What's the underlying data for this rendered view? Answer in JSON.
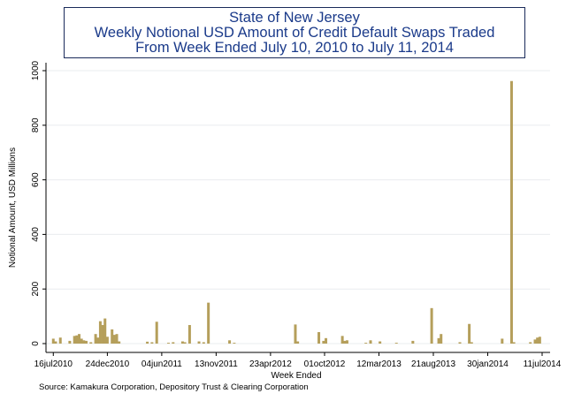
{
  "chart_data": {
    "type": "bar",
    "title": "State of New Jersey",
    "subtitle_lines": [
      "Weekly Notional USD Amount of Credit Default Swaps Traded",
      "From Week Ended July 10, 2010 to July 11, 2014"
    ],
    "xlabel": "Week Ended",
    "ylabel": "Notional Amount, USD Millions",
    "ylim": [
      0,
      1000
    ],
    "yticks": [
      0,
      200,
      400,
      600,
      800,
      1000
    ],
    "xlim": [
      "2010-07-10",
      "2014-07-11"
    ],
    "xticks": [
      {
        "date": "2010-07-16",
        "label": "16jul2010"
      },
      {
        "date": "2010-12-24",
        "label": "24dec2010"
      },
      {
        "date": "2011-06-04",
        "label": "04jun2011"
      },
      {
        "date": "2011-11-13",
        "label": "13nov2011"
      },
      {
        "date": "2012-04-23",
        "label": "23apr2012"
      },
      {
        "date": "2012-10-01",
        "label": "01oct2012"
      },
      {
        "date": "2013-03-12",
        "label": "12mar2013"
      },
      {
        "date": "2013-08-21",
        "label": "21aug2013"
      },
      {
        "date": "2014-01-30",
        "label": "30jan2014"
      },
      {
        "date": "2014-07-11",
        "label": "11jul2014"
      }
    ],
    "bar_color": "#b59f5b",
    "grid": true,
    "series": [
      {
        "x": [
          "2010-07-16",
          "2010-07-23",
          "2010-08-06",
          "2010-09-03",
          "2010-09-17",
          "2010-09-24",
          "2010-10-01",
          "2010-10-08",
          "2010-10-15",
          "2010-10-22",
          "2010-11-05",
          "2010-11-19",
          "2010-11-26",
          "2010-12-03",
          "2010-12-10",
          "2010-12-17",
          "2010-12-24",
          "2011-01-07",
          "2011-01-14",
          "2011-01-21",
          "2011-01-28",
          "2011-04-22",
          "2011-05-06",
          "2011-05-20",
          "2011-06-24",
          "2011-07-08",
          "2011-08-05",
          "2011-08-12",
          "2011-08-26",
          "2011-09-23",
          "2011-10-07",
          "2011-10-21",
          "2011-12-23",
          "2012-01-06",
          "2012-07-06",
          "2012-07-13",
          "2012-09-14",
          "2012-09-28",
          "2012-10-05",
          "2012-11-23",
          "2012-11-30",
          "2012-12-07",
          "2013-02-01",
          "2013-02-15",
          "2013-03-15",
          "2013-05-03",
          "2013-06-21",
          "2013-08-16",
          "2013-09-06",
          "2013-09-13",
          "2013-11-08",
          "2013-12-06",
          "2013-12-13",
          "2014-03-14",
          "2014-04-11",
          "2014-04-18",
          "2014-06-06",
          "2014-06-20",
          "2014-06-27",
          "2014-07-04"
        ],
        "values": [
          18,
          8,
          22,
          10,
          28,
          30,
          35,
          18,
          12,
          10,
          5,
          35,
          22,
          82,
          68,
          92,
          25,
          52,
          32,
          35,
          8,
          7,
          5,
          80,
          3,
          5,
          8,
          5,
          68,
          8,
          5,
          150,
          12,
          3,
          70,
          8,
          42,
          10,
          20,
          28,
          10,
          12,
          3,
          12,
          8,
          3,
          10,
          130,
          20,
          35,
          5,
          72,
          5,
          18,
          962,
          5,
          5,
          15,
          22,
          25
        ]
      }
    ],
    "source": "Source: Kamakura Corporation, Depository Trust & Clearing Corporation"
  }
}
